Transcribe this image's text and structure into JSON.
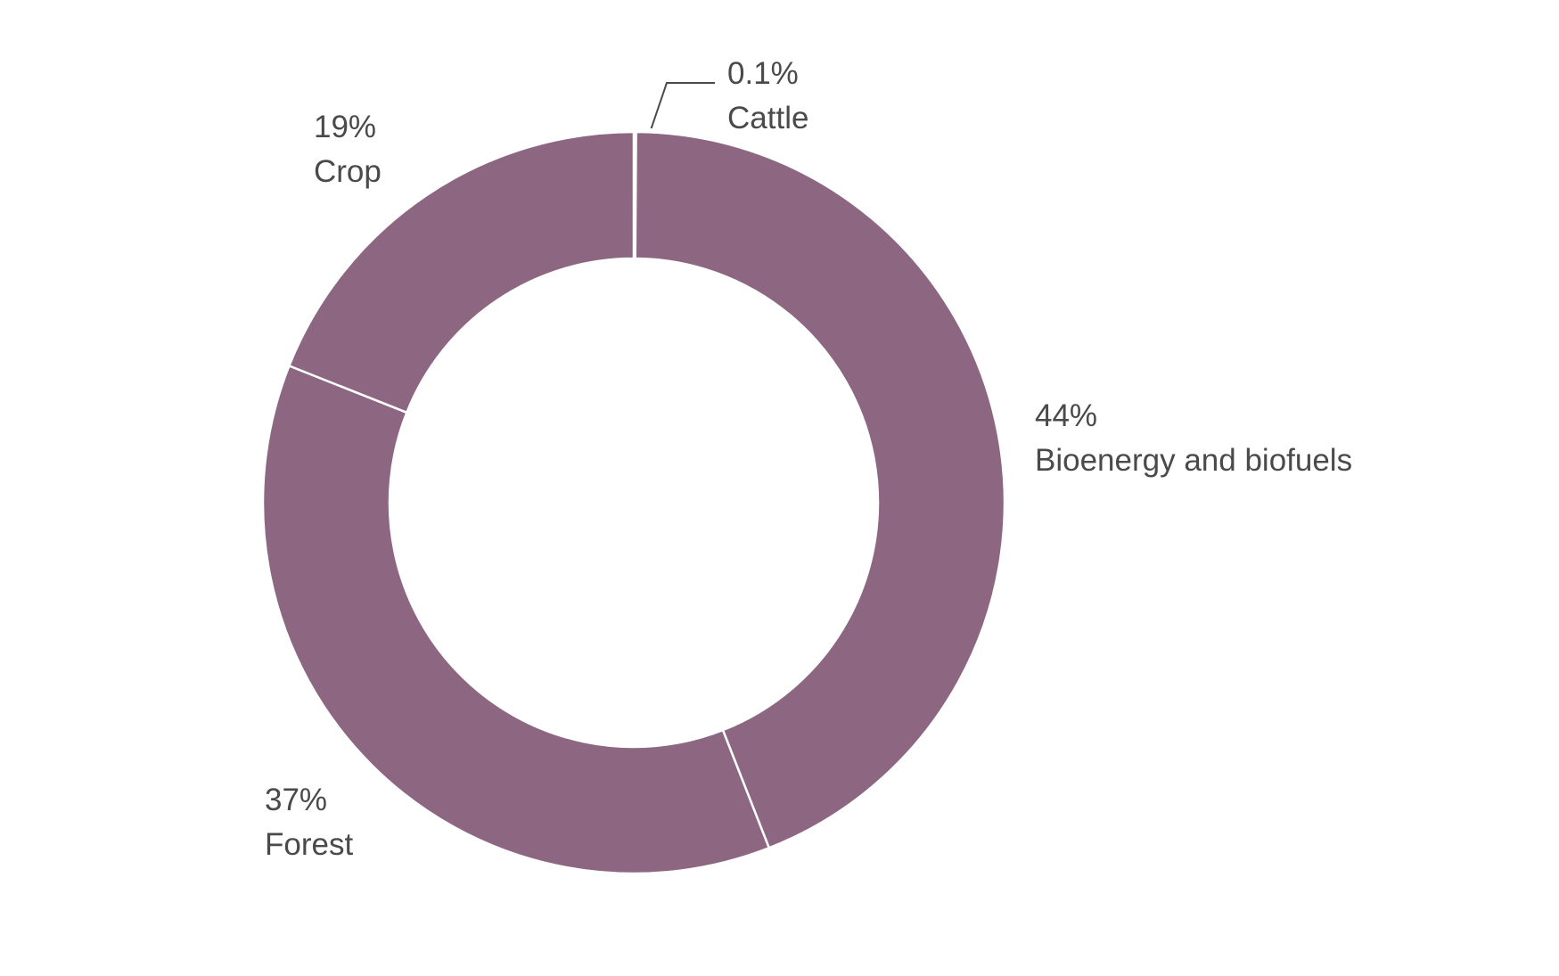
{
  "chart_data": {
    "type": "pie",
    "variant": "donut",
    "slices": [
      {
        "label": "Cattle",
        "value": 0.1,
        "percent_text": "0.1%"
      },
      {
        "label": "Bioenergy and biofuels",
        "value": 44,
        "percent_text": "44%"
      },
      {
        "label": "Forest",
        "value": 37,
        "percent_text": "37%"
      },
      {
        "label": "Crop",
        "value": 19,
        "percent_text": "19%"
      }
    ],
    "start_angle": "12 o'clock",
    "direction": "clockwise",
    "colors": {
      "slice_fill": "#8d6681",
      "separator": "#ffffff",
      "label_text": "#4a4a4a",
      "leader_line": "#4a4a4a",
      "background": "#ffffff"
    },
    "legend": "none (direct labels)"
  }
}
